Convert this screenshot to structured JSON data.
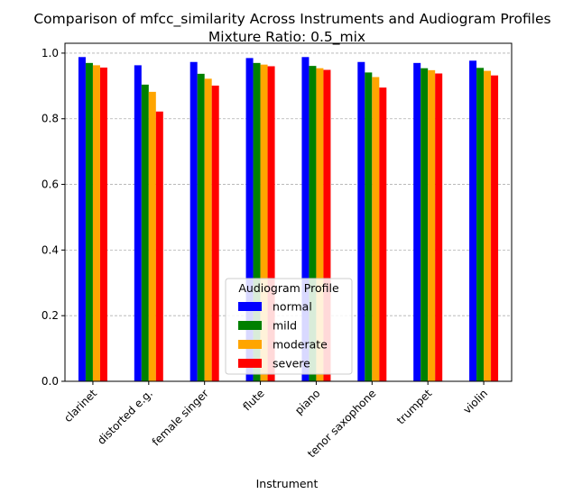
{
  "chart_data": {
    "type": "bar",
    "title": "Comparison of mfcc_similarity Across Instruments and Audiogram Profiles",
    "subtitle": "Mixture Ratio: 0.5_mix",
    "xlabel": "Instrument",
    "ylabel": "",
    "ylim": [
      0,
      1.03
    ],
    "yticks": [
      "0.0",
      "0.2",
      "0.4",
      "0.6",
      "0.8",
      "1.0"
    ],
    "grid": "y-dashed",
    "legend_title": "Audiogram Profile",
    "legend_position": "lower-center",
    "categories": [
      "clarinet",
      "distorted e.g.",
      "female singer",
      "flute",
      "piano",
      "tenor saxophone",
      "trumpet",
      "violin"
    ],
    "series": [
      {
        "name": "normal",
        "color": "#0000ff",
        "values": [
          0.988,
          0.963,
          0.973,
          0.985,
          0.988,
          0.973,
          0.97,
          0.977
        ]
      },
      {
        "name": "mild",
        "color": "#008000",
        "values": [
          0.97,
          0.904,
          0.937,
          0.97,
          0.961,
          0.941,
          0.954,
          0.955
        ]
      },
      {
        "name": "moderate",
        "color": "#ffa500",
        "values": [
          0.963,
          0.882,
          0.922,
          0.965,
          0.954,
          0.927,
          0.948,
          0.946
        ]
      },
      {
        "name": "severe",
        "color": "#ff0000",
        "values": [
          0.956,
          0.822,
          0.901,
          0.96,
          0.949,
          0.895,
          0.938,
          0.932
        ]
      }
    ]
  }
}
